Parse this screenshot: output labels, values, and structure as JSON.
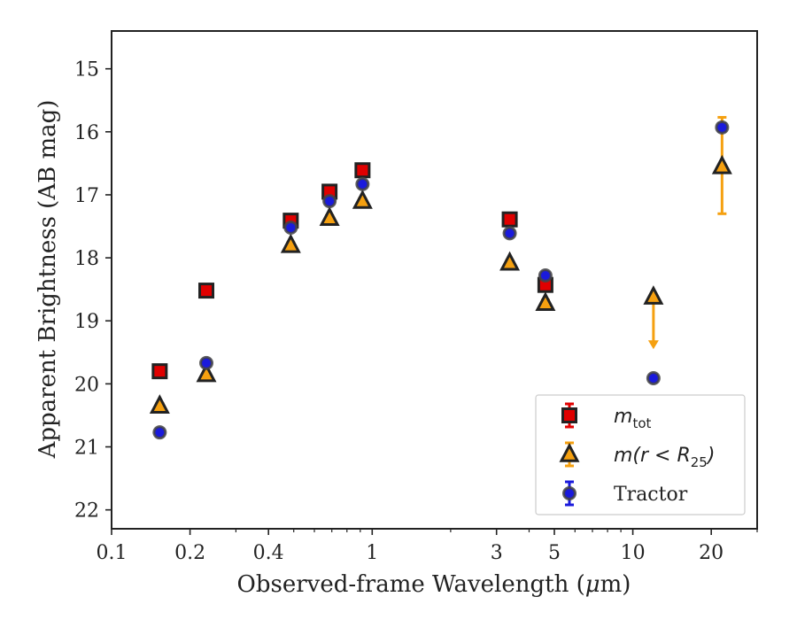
{
  "chart_data": {
    "type": "scatter",
    "xlabel": "Observed-frame Wavelength (",
    "xlabel_mu": "μ",
    "xlabel_unit": "m)",
    "ylabel": "Apparent Brightness (AB mag)",
    "xscale": "log",
    "xlim": [
      0.1,
      30
    ],
    "ylim": [
      22.3,
      14.4
    ],
    "y_inverted": true,
    "grid": false,
    "legend_position": "bottom-right",
    "x_ticks": [
      {
        "value": 0.1,
        "label": "0.1"
      },
      {
        "value": 0.2,
        "label": "0.2"
      },
      {
        "value": 0.4,
        "label": "0.4"
      },
      {
        "value": 1,
        "label": "1"
      },
      {
        "value": 3,
        "label": "3"
      },
      {
        "value": 5,
        "label": "5"
      },
      {
        "value": 10,
        "label": "10"
      },
      {
        "value": 20,
        "label": "20"
      }
    ],
    "y_ticks": [
      {
        "value": 15,
        "label": "15"
      },
      {
        "value": 16,
        "label": "16"
      },
      {
        "value": 17,
        "label": "17"
      },
      {
        "value": 18,
        "label": "18"
      },
      {
        "value": 19,
        "label": "19"
      },
      {
        "value": 20,
        "label": "20"
      },
      {
        "value": 21,
        "label": "21"
      },
      {
        "value": 22,
        "label": "22"
      }
    ],
    "series": [
      {
        "name": "m_tot",
        "legend_base": "m",
        "legend_sub": "tot",
        "marker": "square",
        "color": "#e00000",
        "edge": "#222222",
        "errcolor": "#e00000",
        "points": [
          {
            "x": 0.153,
            "y": 19.8,
            "err": 0.05
          },
          {
            "x": 0.231,
            "y": 18.52,
            "err": 0.04
          },
          {
            "x": 0.487,
            "y": 17.41,
            "err": 0.04
          },
          {
            "x": 0.686,
            "y": 16.95,
            "err": 0.04
          },
          {
            "x": 0.918,
            "y": 16.61,
            "err": 0.04
          },
          {
            "x": 3.37,
            "y": 17.39,
            "err": 0.04
          },
          {
            "x": 4.62,
            "y": 18.43,
            "err": 0.05
          }
        ]
      },
      {
        "name": "m(r<R_25)",
        "legend_base": "m(r < R",
        "legend_sub": "25",
        "legend_close": ")",
        "marker": "triangle",
        "color": "#f5a010",
        "edge": "#222222",
        "errcolor": "#f5a010",
        "points": [
          {
            "x": 0.153,
            "y": 20.35,
            "err": 0.04
          },
          {
            "x": 0.231,
            "y": 19.85,
            "err": 0.04
          },
          {
            "x": 0.487,
            "y": 17.8,
            "err": 0.04
          },
          {
            "x": 0.686,
            "y": 17.37,
            "err": 0.04
          },
          {
            "x": 0.918,
            "y": 17.1,
            "err": 0.04
          },
          {
            "x": 3.37,
            "y": 18.08,
            "err": 0.04
          },
          {
            "x": 4.62,
            "y": 18.72,
            "err": 0.05
          },
          {
            "x": 12.0,
            "y": 18.62,
            "upper_limit": true,
            "limit_to": 19.45
          },
          {
            "x": 22.0,
            "y": 16.55,
            "err_low": 0.78,
            "err_high": 0.75
          }
        ]
      },
      {
        "name": "Tractor",
        "legend_base": "Tractor",
        "marker": "circle",
        "color": "#1a1adc",
        "edge": "#444444",
        "errcolor": "#1a1adc",
        "points": [
          {
            "x": 0.153,
            "y": 20.77,
            "err": 0.05
          },
          {
            "x": 0.231,
            "y": 19.67,
            "err": 0.05
          },
          {
            "x": 0.487,
            "y": 17.52,
            "err": 0.04
          },
          {
            "x": 0.686,
            "y": 17.1,
            "err": 0.04
          },
          {
            "x": 0.918,
            "y": 16.83,
            "err": 0.04
          },
          {
            "x": 3.37,
            "y": 17.61,
            "err": 0.04
          },
          {
            "x": 4.62,
            "y": 18.28,
            "err": 0.05
          },
          {
            "x": 12.0,
            "y": 19.91,
            "err": 0.05
          },
          {
            "x": 22.0,
            "y": 15.93,
            "err": 0.06
          }
        ]
      }
    ]
  }
}
